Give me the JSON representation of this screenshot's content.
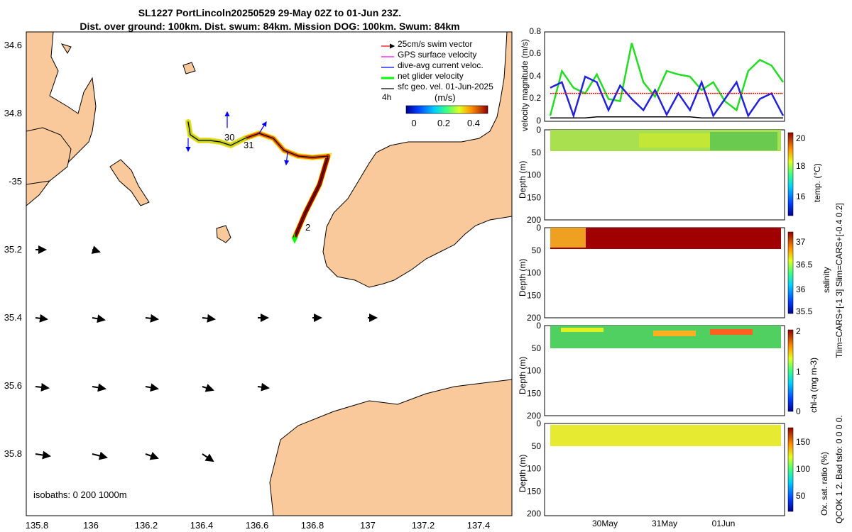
{
  "header": {
    "title_line1": "SL1227 PortLincoln20250529 29-May 02Z to 01-Jun 23Z.",
    "title_line2": "Dist. over ground: 100km. Dist. swum: 84km. Mission DOG: 100km. Swum: 84km"
  },
  "map": {
    "lon_ticks": [
      "135.8",
      "136",
      "136.2",
      "136.4",
      "136.6",
      "136.8",
      "137",
      "137.2",
      "137.4"
    ],
    "lat_ticks": [
      "34.6",
      "34.8",
      "-35",
      "35.2",
      "35.4",
      "35.6",
      "35.8"
    ],
    "legend": [
      {
        "label": "25cm/s swim vector",
        "color": "#ff0000"
      },
      {
        "label": "GPS surface velocity",
        "color": "#ff00ff"
      },
      {
        "label": "dive-avg current veloc.",
        "color": "#0000ff"
      },
      {
        "label": "net glider velocity",
        "color": "#00ff00"
      },
      {
        "label": "sfc geo. vel. 01-Jun-2025",
        "color": "#000000"
      }
    ],
    "legend_time": "4h",
    "colorbar_label": "(m/s)",
    "colorbar_ticks": [
      "0",
      "0.2",
      "0.4"
    ],
    "track_labels": [
      "30",
      "31",
      "2"
    ],
    "isobaths_text": "isobaths: 0   200  1000m"
  },
  "chart_data": [
    {
      "type": "line",
      "ylabel": "velocity magnitude (m/s)",
      "ylim": [
        0,
        0.8
      ],
      "yticks": [
        "0",
        "0.2",
        "0.4",
        "0.6",
        "0.8"
      ],
      "x": [
        0,
        0.05,
        0.1,
        0.15,
        0.2,
        0.25,
        0.3,
        0.35,
        0.4,
        0.45,
        0.5,
        0.55,
        0.6,
        0.65,
        0.7,
        0.75,
        0.8,
        0.85,
        0.9,
        0.95,
        1.0
      ],
      "series": [
        {
          "name": "net glider velocity",
          "color": "#22dd22",
          "values": [
            0.05,
            0.45,
            0.3,
            0.25,
            0.42,
            0.2,
            0.18,
            0.7,
            0.35,
            0.22,
            0.45,
            0.42,
            0.4,
            0.28,
            0.35,
            0.18,
            0.1,
            0.45,
            0.55,
            0.5,
            0.35
          ]
        },
        {
          "name": "dive-avg current veloc.",
          "color": "#2222dd",
          "values": [
            0.3,
            0.35,
            0.05,
            0.4,
            0.35,
            0.1,
            0.32,
            0.2,
            0.1,
            0.28,
            0.06,
            0.25,
            0.1,
            0.35,
            0.05,
            0.2,
            0.35,
            0.05,
            0.2,
            0.25,
            0.05
          ]
        },
        {
          "name": "25cm/s swim vector",
          "color": "#ff0000",
          "values": [
            0.25,
            0.25,
            0.25,
            0.25,
            0.25,
            0.25,
            0.25,
            0.25,
            0.25,
            0.25,
            0.25,
            0.25,
            0.25,
            0.25,
            0.25,
            0.25,
            0.25,
            0.25,
            0.25,
            0.25,
            0.25
          ]
        },
        {
          "name": "sfc geo. vel.",
          "color": "#000000",
          "values": [
            0.03,
            0.03,
            0.03,
            0.03,
            0.04,
            0.04,
            0.04,
            0.04,
            0.04,
            0.04,
            0.04,
            0.04,
            0.04,
            0.03,
            0.03,
            0.03,
            0.03,
            0.03,
            0.03,
            0.03,
            0.03
          ]
        }
      ]
    },
    {
      "type": "heatmap",
      "ylabel": "Depth (m)",
      "yticks": [
        "0",
        "50",
        "100",
        "150",
        "200"
      ],
      "colorbar_label": "temp. (°C)",
      "colorbar_ticks": [
        "16",
        "18",
        "20"
      ]
    },
    {
      "type": "heatmap",
      "ylabel": "Depth (m)",
      "yticks": [
        "0",
        "50",
        "100",
        "150",
        "200"
      ],
      "colorbar_label": "salinity",
      "colorbar_ticks": [
        "35.5",
        "36",
        "36.5",
        "37"
      ]
    },
    {
      "type": "heatmap",
      "ylabel": "Depth (m)",
      "yticks": [
        "0",
        "50",
        "100",
        "150",
        "200"
      ],
      "colorbar_label": "chl-a  (mg m-3)",
      "colorbar_ticks": [
        "0",
        "1",
        "2"
      ]
    },
    {
      "type": "heatmap",
      "ylabel": "Depth (m)",
      "yticks": [
        "0",
        "50",
        "100",
        "150",
        "200"
      ],
      "colorbar_label": "Ox. sat. ratio (%)",
      "colorbar_ticks": [
        "50",
        "100",
        "150"
      ],
      "xticks": [
        "30May",
        "31May",
        "01Jun"
      ]
    }
  ],
  "side_note_1": "Tlim=CARS+[-1 3] Slim=CARS+[-0.4 0.2]",
  "side_note_2": "QCOK 1  2. Bad tsfo: 0  0  0  0."
}
